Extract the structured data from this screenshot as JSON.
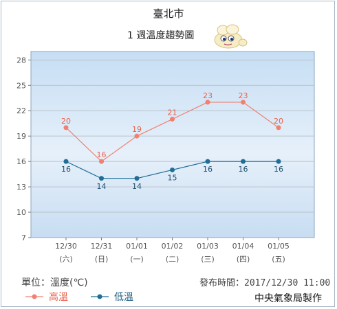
{
  "header": {
    "title": "臺北市",
    "subtitle": "1 週溫度趨勢圖"
  },
  "footer": {
    "unit_label": "單位：溫度(℃)",
    "issued_label": "發布時間：2017/12/30 11:00",
    "producer": "中央氣象局製作"
  },
  "mascot_icon": "weather-mascot-icon",
  "chart_data": {
    "type": "line",
    "categories": [
      "12/30",
      "12/31",
      "01/01",
      "01/02",
      "01/03",
      "01/04",
      "01/05"
    ],
    "weekday_labels": [
      "(六)",
      "(日)",
      "(一)",
      "(二)",
      "(三)",
      "(四)",
      "(五)"
    ],
    "series": [
      {
        "name": "高溫",
        "color": "#f08070",
        "values": [
          20,
          16,
          19,
          21,
          23,
          23,
          20
        ]
      },
      {
        "name": "低溫",
        "color": "#1f6e96",
        "values": [
          16,
          14,
          14,
          15,
          16,
          16,
          16
        ]
      }
    ],
    "yticks": [
      7,
      10,
      13,
      16,
      19,
      22,
      25,
      28
    ],
    "ylim": [
      7,
      29
    ],
    "grid": true,
    "legend": "bottom-left"
  }
}
